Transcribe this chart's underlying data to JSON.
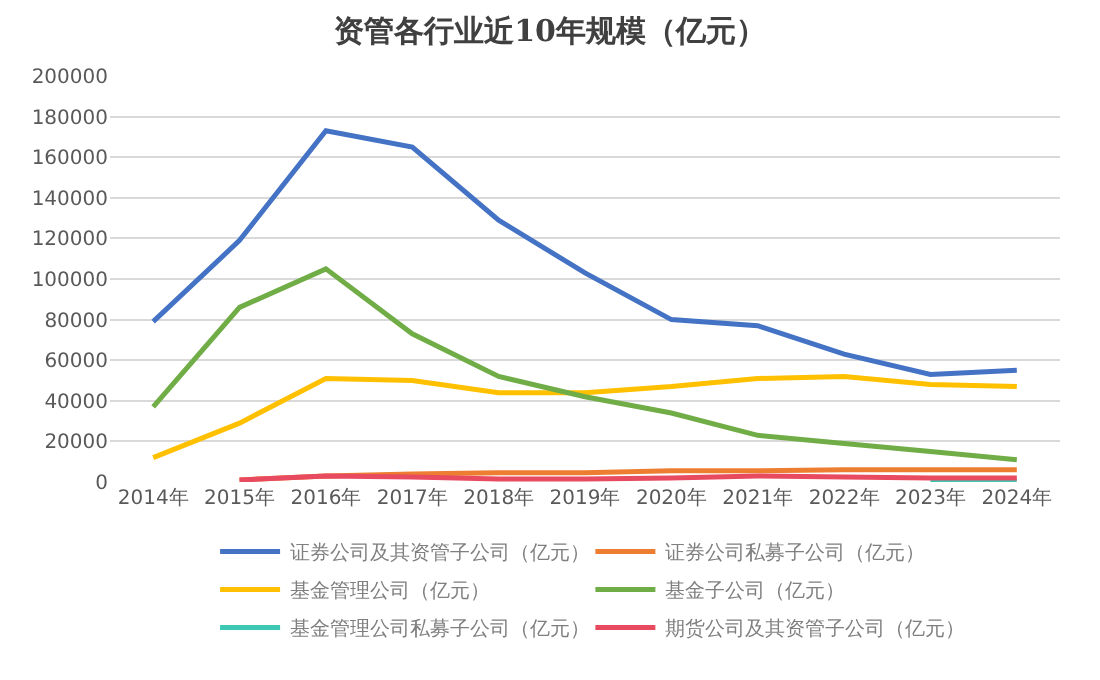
{
  "chart_data": {
    "type": "line",
    "title": "资管各行业近10年规模（亿元）",
    "categories": [
      "2014年",
      "2015年",
      "2016年",
      "2017年",
      "2018年",
      "2019年",
      "2020年",
      "2021年",
      "2022年",
      "2023年",
      "2024年"
    ],
    "series": [
      {
        "name": "证券公司及其资管子公司（亿元）",
        "color": "#4472c4",
        "values": [
          79000,
          119000,
          173000,
          165000,
          129000,
          103000,
          80000,
          77000,
          63000,
          53000,
          55000
        ]
      },
      {
        "name": "证券公司私募子公司（亿元）",
        "color": "#ed7d31",
        "values": [
          null,
          1000,
          3000,
          4000,
          4500,
          4500,
          5500,
          5500,
          6000,
          6000,
          6000
        ]
      },
      {
        "name": "基金管理公司（亿元）",
        "color": "#ffc000",
        "values": [
          12000,
          29000,
          51000,
          50000,
          44000,
          44000,
          47000,
          51000,
          52000,
          48000,
          47000
        ]
      },
      {
        "name": "基金子公司（亿元）",
        "color": "#70ad47",
        "values": [
          37000,
          86000,
          105000,
          73000,
          52000,
          42000,
          34000,
          23000,
          19000,
          15000,
          11000
        ]
      },
      {
        "name": "基金管理公司私募子公司（亿元）",
        "color": "#3cc8b4",
        "values": [
          null,
          null,
          null,
          null,
          null,
          null,
          null,
          null,
          null,
          300,
          300
        ]
      },
      {
        "name": "期货公司及其资管子公司（亿元）",
        "color": "#e84a5f",
        "values": [
          null,
          1000,
          3000,
          2500,
          1500,
          1500,
          2000,
          3000,
          2500,
          2000,
          2000
        ]
      }
    ],
    "ylim": [
      0,
      200000
    ],
    "yticks": [
      0,
      20000,
      40000,
      60000,
      80000,
      100000,
      120000,
      140000,
      160000,
      180000,
      200000
    ],
    "grid": "y",
    "legend": "bottom",
    "marker": "none",
    "line_style": "solid"
  }
}
